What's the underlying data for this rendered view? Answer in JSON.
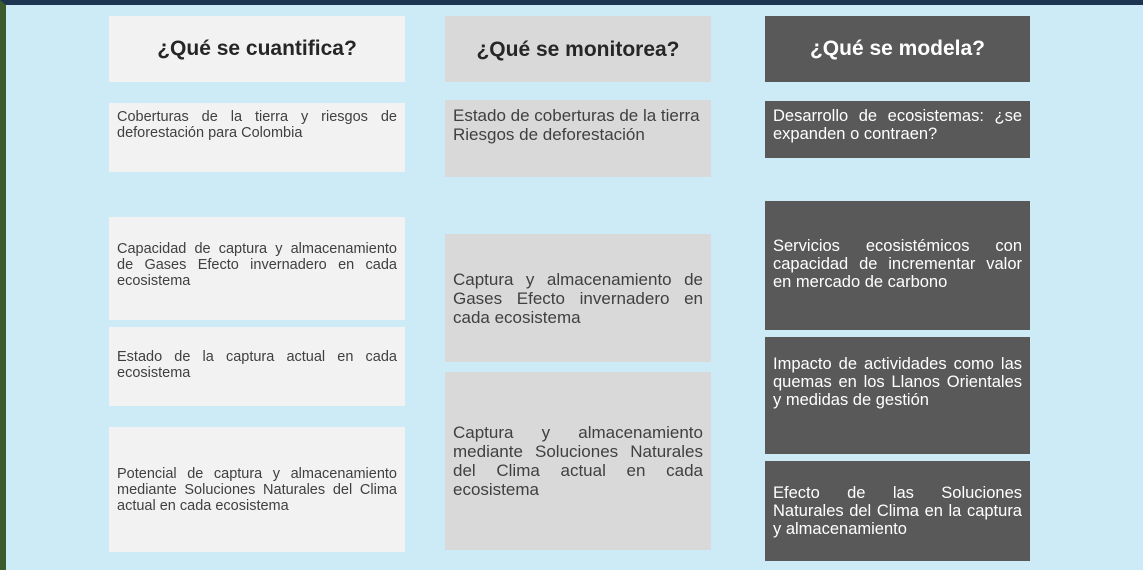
{
  "columns": [
    {
      "header": "¿Qué se cuantifica?",
      "items": [
        "Coberturas de la tierra y riesgos de deforestación para Colombia",
        "Capacidad de captura y almacenamiento de Gases Efecto invernadero en cada ecosistema",
        "Estado de la captura actual en cada ecosistema",
        "Potencial de captura y almacenamiento mediante Soluciones Naturales del Clima actual en cada ecosistema"
      ]
    },
    {
      "header": "¿Qué se monitorea?",
      "items": [
        [
          "Estado de coberturas de la tierra",
          "Riesgos de deforestación"
        ],
        "Captura y almacenamiento de Gases Efecto invernadero en cada ecosistema",
        "Captura y almacenamiento mediante Soluciones Naturales del Clima actual en cada ecosistema"
      ]
    },
    {
      "header": "¿Qué se modela?",
      "items": [
        "Desarrollo de ecosistemas: ¿se expanden o contraen?",
        "Servicios ecosistémicos con capacidad de incrementar valor en mercado de carbono",
        "Impacto de actividades como las quemas en los Llanos Orientales y medidas de gestión",
        "Efecto de las Soluciones Naturales del Clima en la captura y almacenamiento"
      ]
    }
  ]
}
